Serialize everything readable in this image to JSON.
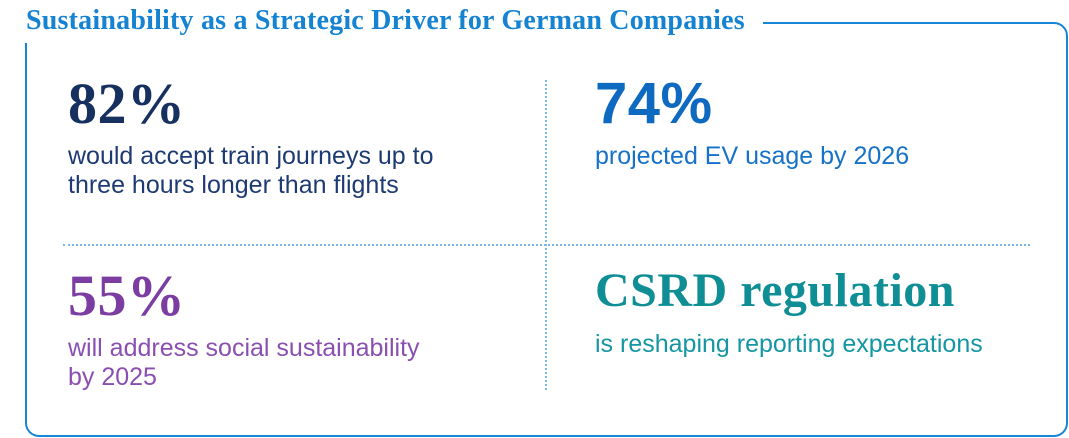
{
  "title": {
    "text": "Sustainability as a Strategic Driver for German Companies",
    "color": "#1583d2"
  },
  "frame": {
    "border_color": "#1786d6",
    "divider_color": "#79b9e8"
  },
  "stats": [
    {
      "value": "82%",
      "lines": [
        "would accept train journeys up to",
        "three hours longer than flights"
      ],
      "value_color": "#16305f",
      "text_color": "#1d3b72"
    },
    {
      "value": "74%",
      "lines": [
        "projected EV usage by 2026"
      ],
      "value_color": "#0e6ac0",
      "text_color": "#1672c8"
    },
    {
      "value": "55%",
      "lines": [
        "will address social sustainability",
        "by 2025"
      ],
      "value_color": "#7b3da1",
      "text_color": "#8a4fb0"
    },
    {
      "value": "CSRD regulation",
      "lines": [
        "is reshaping reporting expectations"
      ],
      "value_color": "#0f8e96",
      "text_color": "#1596a3"
    }
  ],
  "chart_data": {
    "type": "table",
    "title": "Sustainability as a Strategic Driver for German Companies",
    "items": [
      {
        "value": 82,
        "unit": "%",
        "label": "would accept train journeys up to three hours longer than flights"
      },
      {
        "value": 74,
        "unit": "%",
        "label": "projected EV usage by 2026"
      },
      {
        "value": 55,
        "unit": "%",
        "label": "will address social sustainability by 2025"
      },
      {
        "value": "CSRD regulation",
        "unit": "",
        "label": "is reshaping reporting expectations"
      }
    ]
  }
}
